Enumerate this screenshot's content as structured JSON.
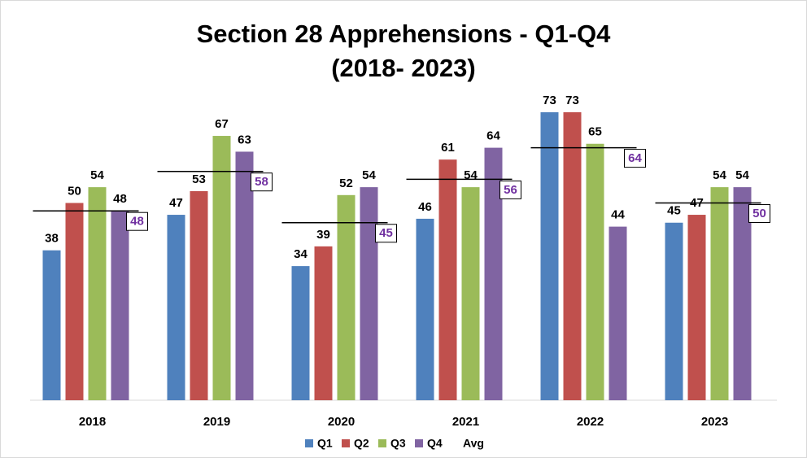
{
  "chart_data": {
    "type": "bar",
    "title": [
      "Section 28 Apprehensions - Q1-Q4",
      "(2018- 2023)"
    ],
    "categories": [
      "2018",
      "2019",
      "2020",
      "2021",
      "2022",
      "2023"
    ],
    "series": [
      {
        "name": "Q1",
        "color": "#4f81bd",
        "values": [
          38,
          47,
          34,
          46,
          73,
          45
        ]
      },
      {
        "name": "Q2",
        "color": "#c0504d",
        "values": [
          50,
          53,
          39,
          61,
          73,
          47
        ]
      },
      {
        "name": "Q3",
        "color": "#9bbb59",
        "values": [
          54,
          67,
          52,
          54,
          65,
          54
        ]
      },
      {
        "name": "Q4",
        "color": "#8064a2",
        "values": [
          48,
          63,
          54,
          64,
          44,
          54
        ]
      }
    ],
    "average": {
      "name": "Avg",
      "color": "#000000",
      "label_color": "#7030a0",
      "values": [
        48,
        58,
        45,
        56,
        64,
        50
      ]
    },
    "ylim": [
      0,
      80
    ]
  }
}
